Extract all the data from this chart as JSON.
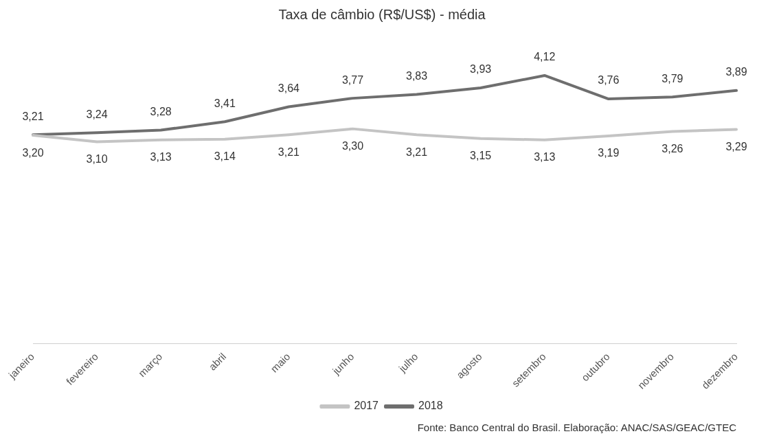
{
  "chart_data": {
    "type": "line",
    "title": "Taxa de câmbio (R$/US$) - média",
    "categories": [
      "janeiro",
      "fevereiro",
      "março",
      "abril",
      "maio",
      "junho",
      "julho",
      "agosto",
      "setembro",
      "outubro",
      "novembro",
      "dezembro"
    ],
    "series": [
      {
        "name": "2017",
        "color": "#c4c4c4",
        "values": [
          3.2,
          3.1,
          3.13,
          3.14,
          3.21,
          3.3,
          3.21,
          3.15,
          3.13,
          3.19,
          3.26,
          3.29
        ],
        "value_labels": [
          "3,20",
          "3,10",
          "3,13",
          "3,14",
          "3,21",
          "3,30",
          "3,21",
          "3,15",
          "3,13",
          "3,19",
          "3,26",
          "3,29"
        ]
      },
      {
        "name": "2018",
        "color": "#6e6e6e",
        "values": [
          3.21,
          3.24,
          3.28,
          3.41,
          3.64,
          3.77,
          3.83,
          3.93,
          4.12,
          3.76,
          3.79,
          3.89
        ],
        "value_labels": [
          "3,21",
          "3,24",
          "3,28",
          "3,41",
          "3,64",
          "3,77",
          "3,83",
          "3,93",
          "4,12",
          "3,76",
          "3,79",
          "3,89"
        ]
      }
    ],
    "tick_labels": "x",
    "grid": false,
    "legend": "bottom",
    "marker": "none",
    "line_style": "solid",
    "annotations": [
      "Fonte: Banco Central do Brasil. Elaboração: ANAC/SAS/GEAC/GTEC"
    ]
  }
}
